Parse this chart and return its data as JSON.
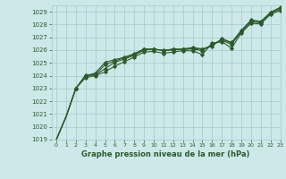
{
  "title": "Graphe pression niveau de la mer (hPa)",
  "bg_color": "#cce8e8",
  "grid_color": "#aacfcf",
  "line_color": "#2d5a2d",
  "xlim": [
    -0.5,
    23
  ],
  "ylim": [
    1019,
    1029.5
  ],
  "yticks": [
    1019,
    1020,
    1021,
    1022,
    1023,
    1024,
    1025,
    1026,
    1027,
    1028,
    1029
  ],
  "xticks": [
    0,
    1,
    2,
    3,
    4,
    5,
    6,
    7,
    8,
    9,
    10,
    11,
    12,
    13,
    14,
    15,
    16,
    17,
    18,
    19,
    20,
    21,
    22,
    23
  ],
  "series": [
    [
      1019.0,
      1020.8,
      1023.0,
      1023.85,
      1024.0,
      1024.3,
      1024.75,
      1025.1,
      1025.45,
      1025.85,
      1025.9,
      1025.75,
      1025.85,
      1025.95,
      1025.95,
      1025.65,
      1026.55,
      1026.65,
      1026.15,
      1027.35,
      1028.1,
      1028.05,
      1028.8,
      1029.1
    ],
    [
      1019.0,
      1020.8,
      1023.0,
      1024.0,
      1024.05,
      1024.55,
      1025.05,
      1025.3,
      1025.6,
      1026.0,
      1026.1,
      1025.95,
      1026.05,
      1026.05,
      1026.1,
      1025.95,
      1026.45,
      1026.75,
      1026.45,
      1027.45,
      1028.2,
      1028.15,
      1028.9,
      1029.2
    ],
    [
      1019.0,
      1020.8,
      1023.0,
      1024.05,
      1024.1,
      1024.85,
      1025.15,
      1025.4,
      1025.65,
      1026.05,
      1026.1,
      1025.95,
      1026.1,
      1026.05,
      1026.15,
      1026.05,
      1026.4,
      1026.85,
      1026.55,
      1027.5,
      1028.3,
      1028.2,
      1028.95,
      1029.3
    ],
    [
      1019.0,
      1020.8,
      1023.0,
      1024.0,
      1024.2,
      1025.05,
      1025.25,
      1025.45,
      1025.72,
      1026.1,
      1026.05,
      1026.0,
      1026.0,
      1026.1,
      1026.2,
      1026.1,
      1026.3,
      1026.9,
      1026.6,
      1027.55,
      1028.35,
      1028.25,
      1028.95,
      1029.35
    ]
  ],
  "figsize": [
    3.2,
    2.0
  ],
  "dpi": 100
}
